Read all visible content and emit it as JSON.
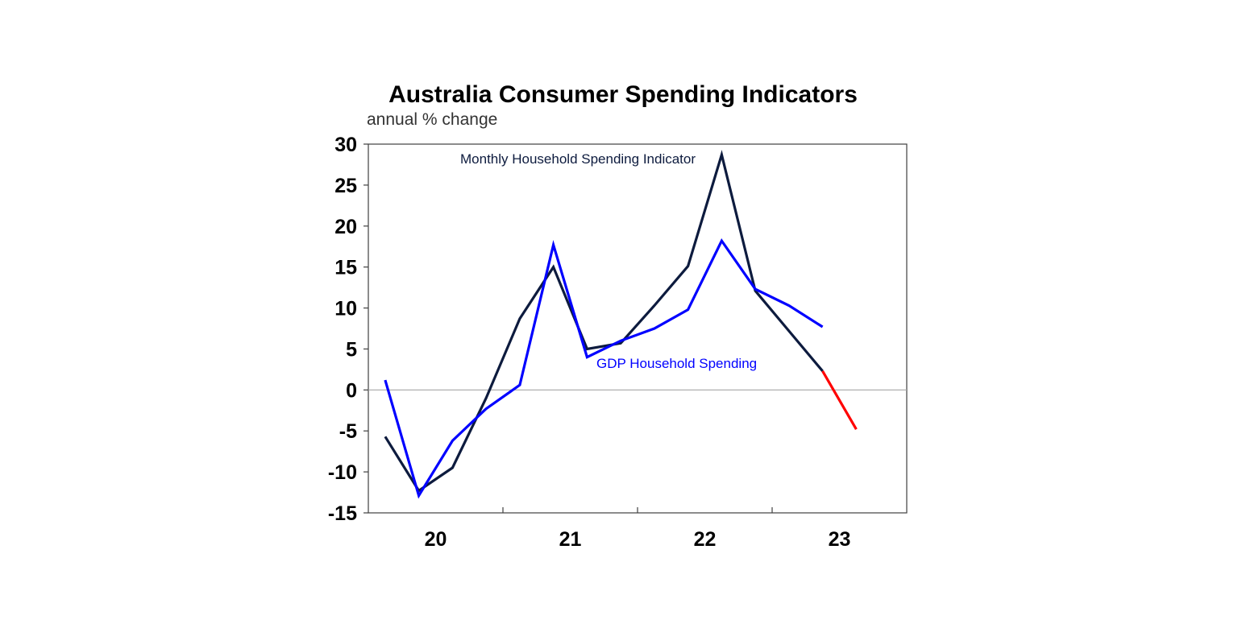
{
  "chart_data": {
    "type": "line",
    "title": "Australia Consumer Spending Indicators",
    "subtitle": "annual % change",
    "ylim": [
      -15,
      30
    ],
    "yticks": [
      30,
      25,
      20,
      15,
      10,
      5,
      0,
      -5,
      -10,
      -15
    ],
    "xlim": [
      0,
      16
    ],
    "xtick_labels": [
      {
        "label": "20",
        "pos": 2
      },
      {
        "label": "21",
        "pos": 6
      },
      {
        "label": "22",
        "pos": 10
      },
      {
        "label": "23",
        "pos": 14
      }
    ],
    "minor_tick_positions": [
      4,
      8,
      12
    ],
    "grid": false,
    "zero_line": true,
    "series": [
      {
        "name": "Monthly Household Spending Indicator",
        "color": "#0d1b3e",
        "x": [
          0.5,
          1.5,
          2.5,
          3.5,
          4.5,
          5.5,
          6.5,
          7.5,
          8.5,
          9.5,
          10.5,
          11.5,
          12.5,
          13.5
        ],
        "values": [
          -5.7,
          -12.3,
          -9.5,
          -1.0,
          8.7,
          15.0,
          5.0,
          5.7,
          10.3,
          15.1,
          28.7,
          12.1,
          7.2,
          2.3
        ]
      },
      {
        "name": "",
        "color": "#ff0000",
        "x": [
          13.5,
          14.5
        ],
        "values": [
          2.3,
          -4.8
        ]
      },
      {
        "name": "GDP Household Spending",
        "color": "#0000ff",
        "x": [
          0.5,
          1.5,
          2.5,
          3.5,
          4.5,
          5.5,
          6.5,
          7.5,
          8.5,
          9.5,
          10.5,
          11.5,
          12.5,
          13.5
        ],
        "values": [
          1.2,
          -12.9,
          -6.2,
          -2.3,
          0.6,
          17.7,
          4.0,
          6.0,
          7.5,
          9.8,
          18.2,
          12.3,
          10.3,
          7.7
        ]
      }
    ],
    "annotations": [
      {
        "text": "Monthly Household Spending Indicator",
        "color": "#0d1b3e"
      },
      {
        "text": "GDP Household Spending",
        "color": "#0000ff"
      }
    ]
  }
}
